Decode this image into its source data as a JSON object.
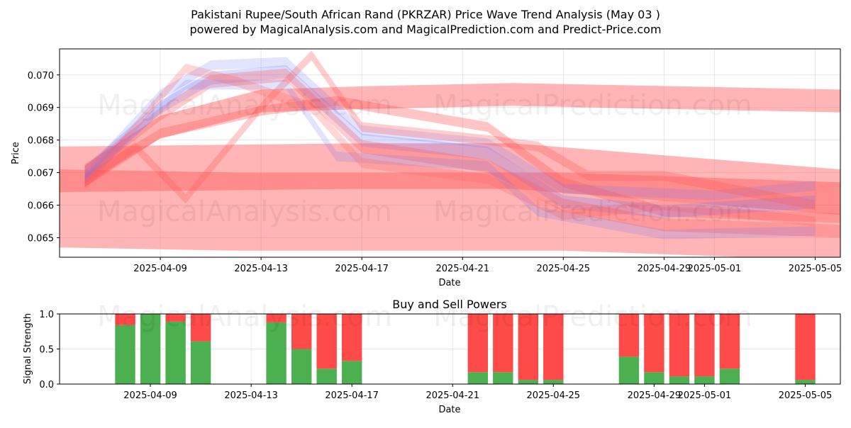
{
  "title_line1": "Pakistani Rupee/South African Rand (PKRZAR) Price Wave Trend Analysis (May 03 )",
  "title_line2": "powered by MagicalAnalysis.com and MagicalPrediction.com and Predict-Price.com",
  "watermarks": [
    "MagicalAnalysis.com",
    "MagicalPrediction.com"
  ],
  "colors": {
    "buy": "#4caf50",
    "sell": "#ff4a4a",
    "wave_red": "#ff5a5a",
    "wave_blue": "#6f74ff"
  },
  "chart_data": [
    {
      "type": "area",
      "name": "price-wave",
      "title": "",
      "xlabel": "Date",
      "ylabel": "Price",
      "x_ticks": [
        "2025-04-09",
        "2025-04-13",
        "2025-04-17",
        "2025-04-21",
        "2025-04-25",
        "2025-04-29",
        "2025-05-01",
        "2025-05-05"
      ],
      "y_ticks": [
        "0.065",
        "0.066",
        "0.067",
        "0.068",
        "0.069",
        "0.070"
      ],
      "xlim": [
        "2025-04-05",
        "2025-05-06"
      ],
      "ylim": [
        0.0644,
        0.0708
      ],
      "grid": true,
      "bands": [
        {
          "color": "red",
          "opacity": 0.45,
          "width": 0.0014,
          "points": [
            [
              "2025-04-05",
              0.0671
            ],
            [
              "2025-04-17",
              0.0672
            ],
            [
              "2025-04-23",
              0.0672
            ],
            [
              "2025-05-06",
              0.0664
            ]
          ]
        },
        {
          "color": "red",
          "opacity": 0.45,
          "width": 0.0024,
          "points": [
            [
              "2025-04-05",
              0.0659
            ],
            [
              "2025-04-12",
              0.0658
            ],
            [
              "2025-04-17",
              0.0658
            ],
            [
              "2025-04-25",
              0.0658
            ],
            [
              "2025-05-06",
              0.0655
            ]
          ]
        },
        {
          "color": "red",
          "opacity": 0.45,
          "width": 0.0007,
          "points": [
            [
              "2025-04-06",
              0.0669
            ],
            [
              "2025-04-09",
              0.0684
            ],
            [
              "2025-04-13",
              0.0692
            ],
            [
              "2025-04-17",
              0.0693
            ],
            [
              "2025-04-23",
              0.0694
            ],
            [
              "2025-05-06",
              0.0692
            ]
          ]
        },
        {
          "color": "red",
          "opacity": 0.35,
          "width": 0.0003,
          "points": [
            [
              "2025-04-06",
              0.0668
            ],
            [
              "2025-04-09",
              0.0682
            ],
            [
              "2025-04-13",
              0.0689
            ],
            [
              "2025-04-16",
              0.0692
            ],
            [
              "2025-04-22",
              0.0684
            ],
            [
              "2025-04-25",
              0.0667
            ],
            [
              "2025-04-29",
              0.0658
            ],
            [
              "2025-05-06",
              0.0656
            ]
          ]
        },
        {
          "color": "blue",
          "opacity": 0.25,
          "width": 0.0004,
          "points": [
            [
              "2025-04-06",
              0.067
            ],
            [
              "2025-04-09",
              0.069
            ],
            [
              "2025-04-11",
              0.0699
            ],
            [
              "2025-04-14",
              0.0701
            ],
            [
              "2025-04-17",
              0.068
            ],
            [
              "2025-04-22",
              0.0676
            ],
            [
              "2025-04-25",
              0.0661
            ],
            [
              "2025-04-29",
              0.0658
            ],
            [
              "2025-05-05",
              0.0661
            ]
          ]
        },
        {
          "color": "blue",
          "opacity": 0.2,
          "width": 0.0003,
          "points": [
            [
              "2025-04-06",
              0.0669
            ],
            [
              "2025-04-09",
              0.0694
            ],
            [
              "2025-04-11",
              0.0703
            ],
            [
              "2025-04-14",
              0.0704
            ],
            [
              "2025-04-17",
              0.0683
            ],
            [
              "2025-04-22",
              0.0679
            ],
            [
              "2025-04-25",
              0.0665
            ],
            [
              "2025-05-01",
              0.0663
            ],
            [
              "2025-05-05",
              0.0666
            ]
          ]
        },
        {
          "color": "red",
          "opacity": 0.3,
          "width": 0.0004,
          "points": [
            [
              "2025-04-06",
              0.067
            ],
            [
              "2025-04-09",
              0.0688
            ],
            [
              "2025-04-11",
              0.0698
            ],
            [
              "2025-04-14",
              0.07
            ],
            [
              "2025-04-17",
              0.0678
            ],
            [
              "2025-04-22",
              0.0672
            ],
            [
              "2025-04-25",
              0.066
            ],
            [
              "2025-04-29",
              0.0654
            ],
            [
              "2025-05-06",
              0.0652
            ]
          ]
        },
        {
          "color": "red",
          "opacity": 0.3,
          "width": 0.0003,
          "points": [
            [
              "2025-04-06",
              0.0667
            ],
            [
              "2025-04-08",
              0.0678
            ],
            [
              "2025-04-10",
              0.0662
            ],
            [
              "2025-04-13",
              0.069
            ],
            [
              "2025-04-15",
              0.0706
            ],
            [
              "2025-04-17",
              0.0684
            ],
            [
              "2025-04-22",
              0.068
            ],
            [
              "2025-04-24",
              0.0678
            ],
            [
              "2025-04-26",
              0.0669
            ],
            [
              "2025-04-29",
              0.0669
            ],
            [
              "2025-05-05",
              0.066
            ]
          ]
        },
        {
          "color": "blue",
          "opacity": 0.2,
          "width": 0.0003,
          "points": [
            [
              "2025-04-06",
              0.0668
            ],
            [
              "2025-04-10",
              0.0697
            ],
            [
              "2025-04-14",
              0.0697
            ],
            [
              "2025-04-16",
              0.0675
            ],
            [
              "2025-04-22",
              0.0672
            ],
            [
              "2025-04-24",
              0.0658
            ],
            [
              "2025-04-29",
              0.0651
            ],
            [
              "2025-05-05",
              0.0652
            ]
          ]
        },
        {
          "color": "red",
          "opacity": 0.25,
          "width": 0.0003,
          "points": [
            [
              "2025-04-06",
              0.0666
            ],
            [
              "2025-04-10",
              0.0702
            ],
            [
              "2025-04-12",
              0.0698
            ],
            [
              "2025-04-15",
              0.069
            ],
            [
              "2025-04-17",
              0.0673
            ],
            [
              "2025-04-22",
              0.0668
            ],
            [
              "2025-04-25",
              0.0657
            ],
            [
              "2025-04-29",
              0.066
            ],
            [
              "2025-05-05",
              0.0655
            ]
          ]
        }
      ]
    },
    {
      "type": "bar",
      "name": "buy-sell-powers",
      "title": "Buy and Sell Powers",
      "xlabel": "Date",
      "ylabel": "Signal Strength",
      "x_ticks": [
        "2025-04-09",
        "2025-04-13",
        "2025-04-17",
        "2025-04-21",
        "2025-04-25",
        "2025-04-29",
        "2025-05-01",
        "2025-05-05"
      ],
      "y_ticks": [
        "0.0",
        "0.5",
        "1.0"
      ],
      "xlim": [
        "2025-04-05",
        "2025-05-06"
      ],
      "ylim": [
        0,
        1
      ],
      "grid": true,
      "series": [
        {
          "name": "buy",
          "values": [
            0.84,
            1.0,
            0.89,
            0.61,
            0.88,
            0.5,
            0.22,
            0.33,
            0.17,
            0.17,
            0.06,
            0.06,
            0.39,
            0.17,
            0.11,
            0.11,
            0.22,
            0.06
          ]
        },
        {
          "name": "sell",
          "values": [
            0.16,
            0.0,
            0.11,
            0.39,
            0.12,
            0.5,
            0.78,
            0.67,
            0.83,
            0.83,
            0.94,
            0.94,
            0.61,
            0.83,
            0.89,
            0.89,
            0.78,
            0.94
          ]
        }
      ],
      "dates": [
        "2025-04-08",
        "2025-04-09",
        "2025-04-10",
        "2025-04-11",
        "2025-04-14",
        "2025-04-15",
        "2025-04-16",
        "2025-04-17",
        "2025-04-22",
        "2025-04-23",
        "2025-04-24",
        "2025-04-25",
        "2025-04-28",
        "2025-04-29",
        "2025-04-30",
        "2025-05-01",
        "2025-05-02",
        "2025-05-05"
      ]
    }
  ]
}
